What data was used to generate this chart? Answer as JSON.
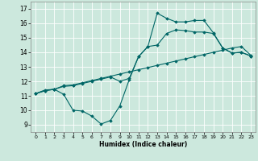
{
  "xlabel": "Humidex (Indice chaleur)",
  "xlim": [
    -0.5,
    23.5
  ],
  "ylim": [
    8.5,
    17.5
  ],
  "xticks": [
    0,
    1,
    2,
    3,
    4,
    5,
    6,
    7,
    8,
    9,
    10,
    11,
    12,
    13,
    14,
    15,
    16,
    17,
    18,
    19,
    20,
    21,
    22,
    23
  ],
  "yticks": [
    9,
    10,
    11,
    12,
    13,
    14,
    15,
    16,
    17
  ],
  "bg_color": "#cce8dd",
  "line_color": "#006666",
  "line1_x": [
    0,
    1,
    2,
    3,
    4,
    5,
    6,
    7,
    8,
    9,
    10,
    11,
    12,
    13,
    14,
    15,
    16,
    17,
    18,
    19,
    20,
    21,
    22,
    23
  ],
  "line1_y": [
    11.15,
    11.4,
    11.45,
    11.1,
    10.0,
    9.95,
    9.6,
    9.05,
    9.3,
    10.3,
    12.1,
    13.7,
    14.4,
    16.7,
    16.35,
    16.1,
    16.1,
    16.2,
    16.2,
    15.35,
    14.3,
    13.95,
    14.0,
    13.75
  ],
  "line2_x": [
    0,
    1,
    2,
    3,
    4,
    5,
    6,
    7,
    8,
    9,
    10,
    11,
    12,
    13,
    14,
    15,
    16,
    17,
    18,
    19,
    20,
    21,
    22,
    23
  ],
  "line2_y": [
    11.15,
    11.35,
    11.45,
    11.7,
    11.75,
    11.9,
    12.05,
    12.2,
    12.35,
    12.5,
    12.65,
    12.8,
    12.95,
    13.1,
    13.25,
    13.4,
    13.55,
    13.7,
    13.85,
    14.0,
    14.15,
    14.3,
    14.4,
    13.8
  ],
  "line3_x": [
    0,
    1,
    2,
    3,
    4,
    5,
    6,
    7,
    8,
    9,
    10,
    11,
    12,
    13,
    14,
    15,
    16,
    17,
    18,
    19,
    20,
    21,
    22,
    23
  ],
  "line3_y": [
    11.15,
    11.35,
    11.45,
    11.65,
    11.7,
    11.85,
    12.0,
    12.15,
    12.3,
    12.0,
    12.2,
    13.7,
    14.4,
    14.5,
    15.3,
    15.55,
    15.5,
    15.4,
    15.4,
    15.3,
    14.3,
    13.95,
    14.0,
    13.75
  ]
}
